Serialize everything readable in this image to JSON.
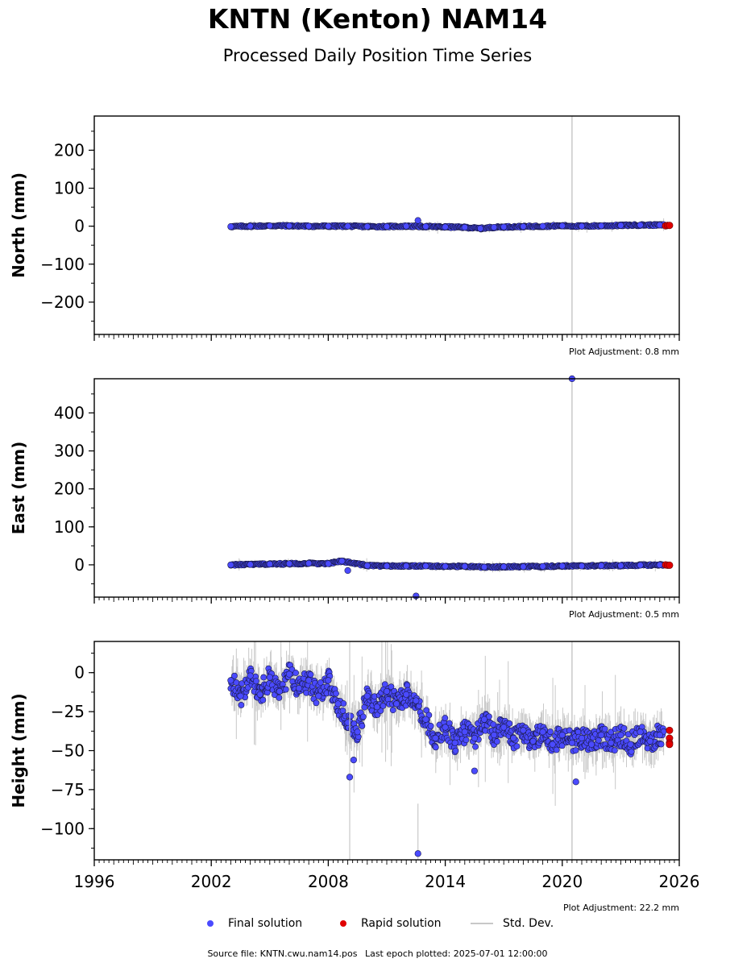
{
  "header": {
    "title": "KNTN (Kenton) NAM14",
    "subtitle": "Processed Daily Position Time Series"
  },
  "legend": {
    "final_label": "Final solution",
    "rapid_label": "Rapid solution",
    "std_label": "Std. Dev.",
    "final_color": "#4a4aff",
    "rapid_color": "#e00000",
    "std_color": "#c8c8c8"
  },
  "footer": {
    "source": "Source file: KNTN.cwu.nam14.pos",
    "last_epoch": "Last epoch plotted: 2025-07-01 12:00:00"
  },
  "chart_data": [
    {
      "type": "scatter",
      "ylabel": "North (mm)",
      "xlim": [
        1996,
        2026
      ],
      "ylim": [
        -285,
        290
      ],
      "yticks": [
        -200,
        -100,
        0,
        100,
        200
      ],
      "ytick_labels": [
        "−200",
        "−100",
        "0",
        "100",
        "200"
      ],
      "adjustment": "Plot Adjustment: 0.8 mm",
      "vline_x": 2020.5,
      "final_range": [
        2003.0,
        2025.2
      ],
      "rapid_range": [
        2025.3,
        2025.5
      ],
      "series": [
        {
          "name": "Final solution",
          "x": [
            2003.0,
            2004.0,
            2005.0,
            2006.0,
            2007.0,
            2008.0,
            2009.0,
            2010.0,
            2011.0,
            2012.0,
            2012.6,
            2013.0,
            2014.0,
            2015.0,
            2015.8,
            2016.5,
            2017.0,
            2018.0,
            2019.0,
            2020.0,
            2021.0,
            2022.0,
            2023.0,
            2024.0,
            2025.0
          ],
          "y": [
            -1,
            0,
            1,
            1,
            0,
            0,
            0,
            -1,
            -1,
            0,
            15,
            -1,
            -2,
            -3,
            -6,
            -3,
            -2,
            -1,
            0,
            1,
            0,
            1,
            2,
            3,
            3
          ]
        },
        {
          "name": "Rapid solution",
          "x": [
            2025.3,
            2025.4,
            2025.5
          ],
          "y": [
            1,
            2,
            2
          ]
        }
      ]
    },
    {
      "type": "scatter",
      "ylabel": "East (mm)",
      "xlim": [
        1996,
        2026
      ],
      "ylim": [
        -85,
        490
      ],
      "yticks": [
        0,
        100,
        200,
        300,
        400
      ],
      "ytick_labels": [
        "0",
        "100",
        "200",
        "300",
        "400"
      ],
      "adjustment": "Plot Adjustment: 0.5 mm",
      "vline_x": 2020.5,
      "final_range": [
        2003.0,
        2025.2
      ],
      "rapid_range": [
        2025.3,
        2025.5
      ],
      "series": [
        {
          "name": "Final solution",
          "x": [
            2003.0,
            2004.0,
            2005.0,
            2006.0,
            2007.0,
            2008.0,
            2008.7,
            2009.0,
            2010.0,
            2011.0,
            2012.0,
            2012.5,
            2013.0,
            2014.0,
            2015.0,
            2016.0,
            2017.0,
            2018.0,
            2019.0,
            2020.0,
            2020.5,
            2021.0,
            2022.0,
            2023.0,
            2024.0,
            2025.0
          ],
          "y": [
            0,
            1,
            2,
            3,
            4,
            3,
            10,
            -15,
            -2,
            -3,
            -3,
            -82,
            -3,
            -4,
            -4,
            -6,
            -5,
            -5,
            -4,
            -3,
            490,
            -3,
            -2,
            -2,
            -1,
            0
          ]
        },
        {
          "name": "Rapid solution",
          "x": [
            2025.3,
            2025.4,
            2025.5
          ],
          "y": [
            0,
            -1,
            -1
          ]
        }
      ]
    },
    {
      "type": "scatter",
      "ylabel": "Height (mm)",
      "xlim": [
        1996,
        2026
      ],
      "ylim": [
        -120,
        20
      ],
      "yticks": [
        -100,
        -75,
        -50,
        -25,
        0
      ],
      "ytick_labels": [
        "−100",
        "−75",
        "−50",
        "−25",
        "0"
      ],
      "xticks": [
        1996,
        2002,
        2008,
        2014,
        2020,
        2026
      ],
      "adjustment": "Plot Adjustment: 22.2 mm",
      "vline_x": 2020.5,
      "final_range": [
        2003.0,
        2025.2
      ],
      "rapid_range": [
        2025.3,
        2025.5
      ],
      "series": [
        {
          "name": "Final solution",
          "x": [
            2003.0,
            2003.5,
            2004.0,
            2004.5,
            2005.0,
            2005.5,
            2006.0,
            2006.5,
            2007.0,
            2007.5,
            2008.0,
            2008.5,
            2009.0,
            2009.5,
            2010.0,
            2010.5,
            2011.0,
            2011.5,
            2012.0,
            2012.5,
            2013.0,
            2013.5,
            2014.0,
            2014.5,
            2015.0,
            2015.5,
            2016.0,
            2016.5,
            2017.0,
            2017.5,
            2018.0,
            2018.5,
            2019.0,
            2019.5,
            2020.0,
            2020.5,
            2021.0,
            2021.5,
            2022.0,
            2022.5,
            2023.0,
            2023.5,
            2024.0,
            2024.5,
            2025.0
          ],
          "y": [
            -5,
            -15,
            -2,
            -14,
            -3,
            -12,
            -1,
            -10,
            -5,
            -15,
            -5,
            -20,
            -32,
            -38,
            -15,
            -22,
            -12,
            -20,
            -14,
            -18,
            -30,
            -42,
            -35,
            -45,
            -38,
            -42,
            -30,
            -40,
            -35,
            -42,
            -37,
            -44,
            -38,
            -46,
            -40,
            -45,
            -42,
            -46,
            -40,
            -45,
            -40,
            -46,
            -38,
            -44,
            -40
          ]
        },
        {
          "name": "Rapid solution",
          "x": [
            2025.5,
            2025.5,
            2025.5,
            2025.5
          ],
          "y": [
            -37,
            -42,
            -45,
            -46
          ]
        }
      ]
    }
  ]
}
